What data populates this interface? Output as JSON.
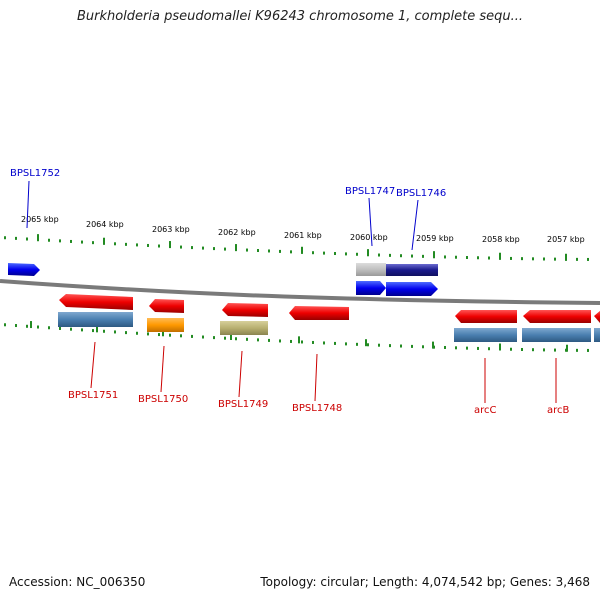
{
  "title": "Burkholderia pseudomallei K96243 chromosome 1, complete sequ...",
  "footer": {
    "accession": "Accession: NC_006350",
    "info": "Topology: circular; Length: 4,074,542 bp; Genes: 3,468"
  },
  "scale_labels": [
    "2065 kbp",
    "2064 kbp",
    "2063 kbp",
    "2062 kbp",
    "2061 kbp",
    "2060 kbp",
    "2059 kbp",
    "2058 kbp",
    "2057 kbp"
  ],
  "genes": [
    {
      "name": "BPSL1752",
      "color": "#0000cc"
    },
    {
      "name": "BPSL1747",
      "color": "#0000cc"
    },
    {
      "name": "BPSL1746",
      "color": "#0000cc"
    },
    {
      "name": "BPSL1751",
      "color": "#cc0000"
    },
    {
      "name": "BPSL1750",
      "color": "#cc0000"
    },
    {
      "name": "BPSL1749",
      "color": "#cc0000"
    },
    {
      "name": "BPSL1748",
      "color": "#cc0000"
    },
    {
      "name": "arcC",
      "color": "#cc0000"
    },
    {
      "name": "arcB",
      "color": "#cc0000"
    }
  ],
  "colors": {
    "backbone": "#7a7a7a",
    "ticks": "#228b22",
    "forward_gene": "#0000ee",
    "reverse_gene": "#ee0000",
    "feature_steel": "#4a7fb0",
    "feature_orange": "#ff9900",
    "feature_olive": "#b8b070",
    "feature_gray": "#bfbfbf",
    "feature_navy": "#1a1a8c"
  }
}
